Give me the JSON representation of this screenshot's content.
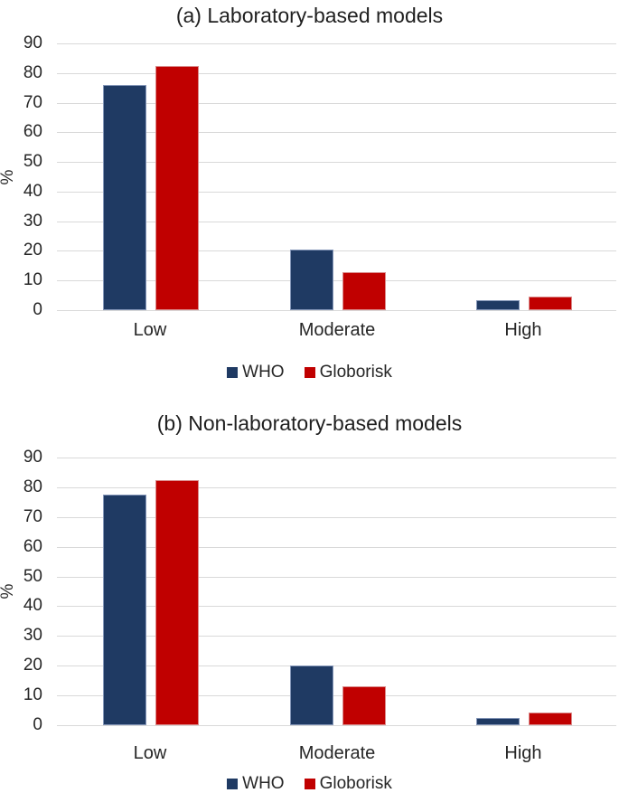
{
  "figure": {
    "background": "#ffffff",
    "text_color": "#262626",
    "gridline_color": "#d9d9d9"
  },
  "chart_data": [
    {
      "type": "bar",
      "title": "(a) Laboratory-based models",
      "ylabel": "%",
      "xlabel": "",
      "ylim": [
        0,
        90
      ],
      "ytick_step": 10,
      "ytick_labels": [
        "90",
        "80",
        "70",
        "60",
        "50",
        "40",
        "30",
        "20",
        "10",
        "0"
      ],
      "grid": true,
      "legend_position": "bottom",
      "categories": [
        "Low",
        "Moderate",
        "High"
      ],
      "series": [
        {
          "name": "WHO",
          "color": "#1f3a63",
          "border_color": "#8496b8",
          "values": [
            76.0,
            20.5,
            3.3
          ]
        },
        {
          "name": "Globorisk",
          "color": "#c00000",
          "border_color": "#d98a8a",
          "values": [
            82.3,
            12.8,
            4.5
          ]
        }
      ]
    },
    {
      "type": "bar",
      "title": "(b) Non-laboratory-based models",
      "ylabel": "%",
      "xlabel": "",
      "ylim": [
        0,
        90
      ],
      "ytick_step": 10,
      "ytick_labels": [
        "90",
        "80",
        "70",
        "60",
        "50",
        "40",
        "30",
        "20",
        "10",
        "0"
      ],
      "grid": true,
      "legend_position": "bottom",
      "categories": [
        "Low",
        "Moderate",
        "High"
      ],
      "series": [
        {
          "name": "WHO",
          "color": "#1f3a63",
          "border_color": "#8496b8",
          "values": [
            77.5,
            20.0,
            2.4
          ]
        },
        {
          "name": "Globorisk",
          "color": "#c00000",
          "border_color": "#d98a8a",
          "values": [
            82.4,
            13.0,
            4.3
          ]
        }
      ]
    }
  ]
}
